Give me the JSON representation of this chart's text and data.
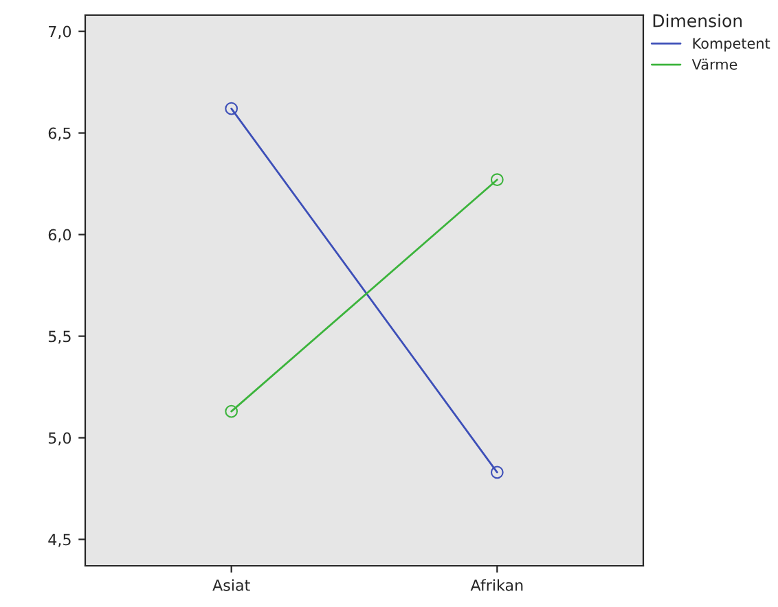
{
  "chart_data": {
    "type": "line",
    "categories": [
      "Asiat",
      "Afrikan"
    ],
    "series": [
      {
        "name": "Kompetent",
        "color": "#3d4fb8",
        "values": [
          6.62,
          4.83
        ]
      },
      {
        "name": "Värme",
        "color": "#3cb43c",
        "values": [
          5.13,
          6.27
        ]
      }
    ],
    "ylim": [
      4.37,
      7.08
    ],
    "yticks": [
      {
        "value": 4.5,
        "label": "4,5"
      },
      {
        "value": 5.0,
        "label": "5,0"
      },
      {
        "value": 5.5,
        "label": "5,5"
      },
      {
        "value": 6.0,
        "label": "6,0"
      },
      {
        "value": 6.5,
        "label": "6,5"
      },
      {
        "value": 7.0,
        "label": "7,0"
      }
    ],
    "legend_title": "Dimension",
    "legend": "top right",
    "marker": "circle",
    "line_style": "solid",
    "grid": false
  }
}
